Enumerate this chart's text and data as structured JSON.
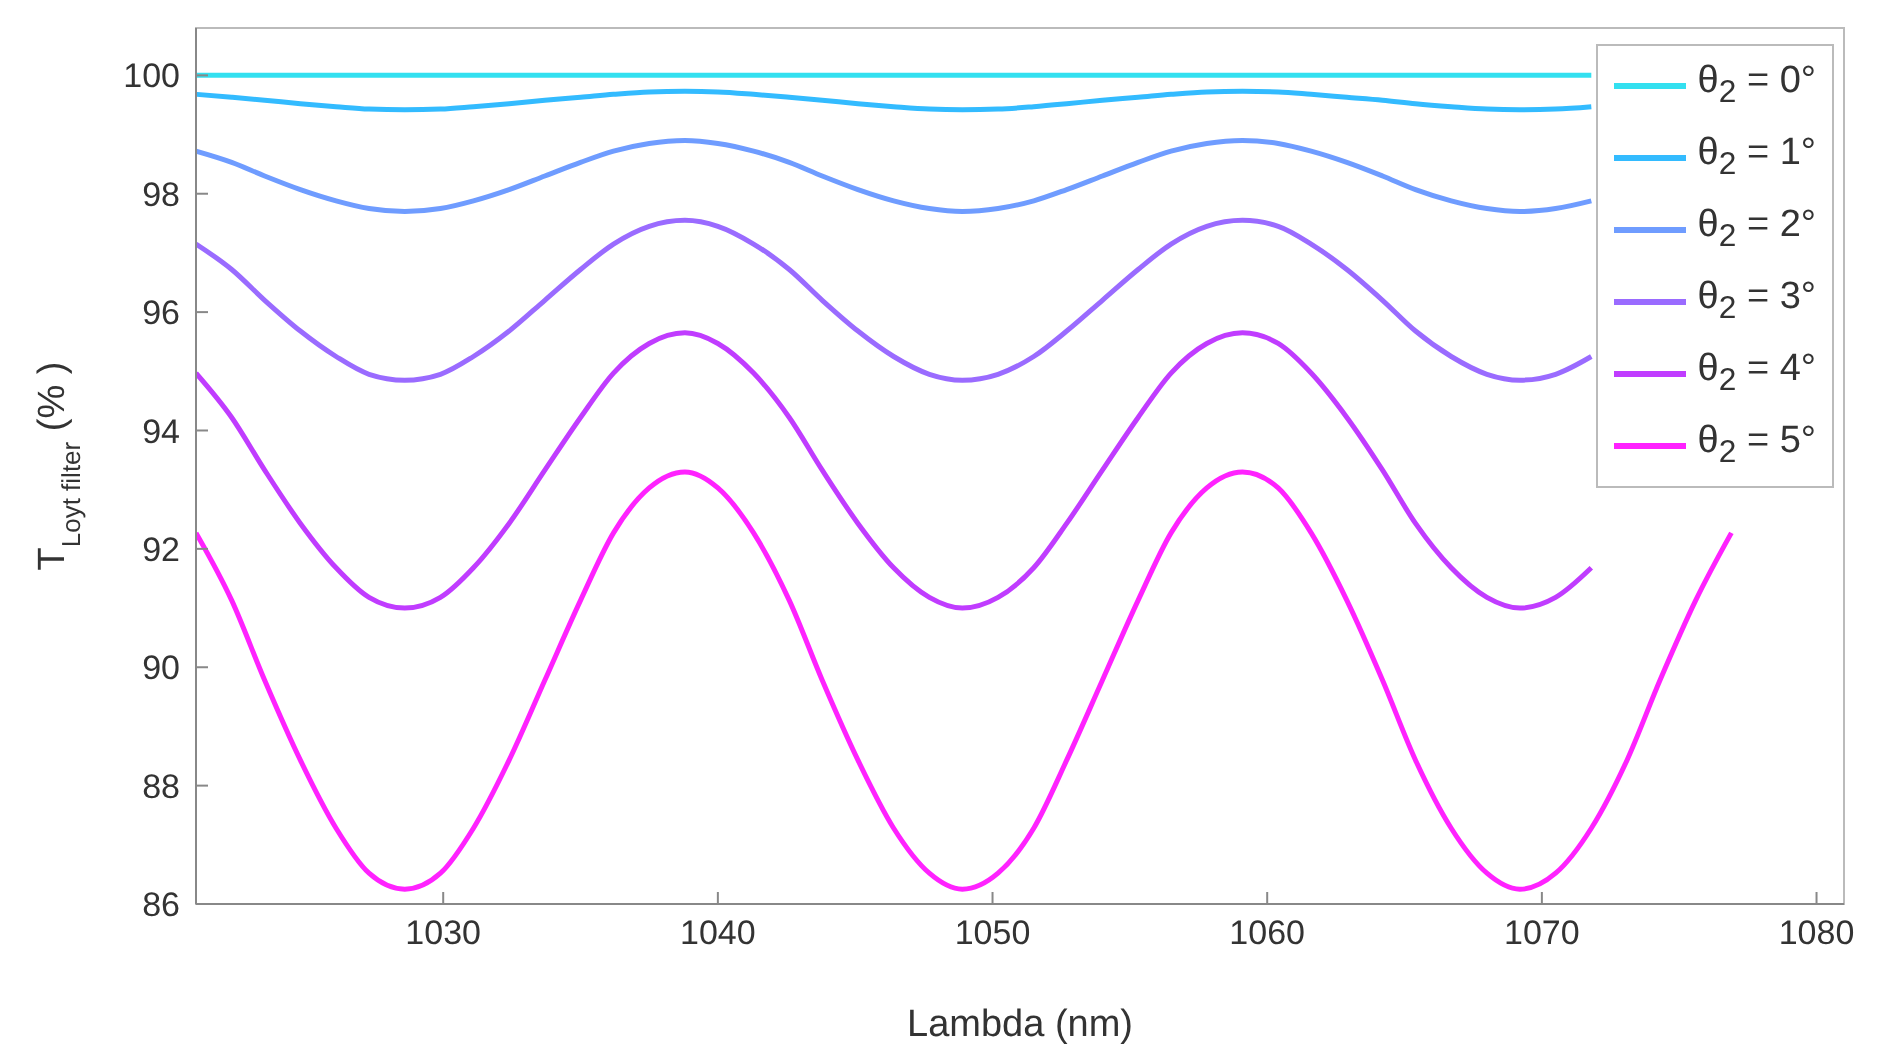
{
  "chart_data": {
    "type": "line",
    "xlabel": "Lambda (nm)",
    "ylabel": "T$_{Loyt filter}$ (% )",
    "x": [
      1021.0,
      1022.3,
      1023.5,
      1024.8,
      1026.1,
      1027.3,
      1028.6,
      1029.9,
      1031.1,
      1032.4,
      1033.7,
      1035.0,
      1036.2,
      1037.5,
      1038.8,
      1040.0,
      1041.3,
      1042.6,
      1043.8,
      1045.1,
      1046.4,
      1047.7,
      1048.9,
      1050.2,
      1051.5,
      1052.7,
      1054.0,
      1055.3,
      1056.5,
      1057.8,
      1059.1,
      1060.4,
      1061.6,
      1062.9,
      1064.2,
      1065.4,
      1066.7,
      1068.0,
      1069.2,
      1070.5,
      1071.8,
      1073.1,
      1074.3,
      1075.6,
      1076.9
    ],
    "series": [
      {
        "name": "θ$_{2}$ = 0°",
        "color": "#33e0f0",
        "x": [
          1021.0,
          1071.8
        ],
        "values": [
          100,
          100
        ]
      },
      {
        "name": "θ$_{2}$ = 1°",
        "color": "#33bbff",
        "values": [
          99.68,
          99.63,
          99.58,
          99.52,
          99.47,
          99.43,
          99.42,
          99.43,
          99.47,
          99.52,
          99.58,
          99.63,
          99.68,
          99.72,
          99.73,
          99.72,
          99.68,
          99.63,
          99.58,
          99.52,
          99.47,
          99.43,
          99.42,
          99.43,
          99.47,
          99.52,
          99.58,
          99.63,
          99.68,
          99.72,
          99.73,
          99.72,
          99.68,
          99.63,
          99.58,
          99.52,
          99.47,
          99.43,
          99.42,
          99.43,
          99.47,
          null,
          null,
          null,
          null
        ]
      },
      {
        "name": "θ$_{2}$ = 2°",
        "color": "#6f9cff",
        "values": [
          98.72,
          98.53,
          98.3,
          98.07,
          97.88,
          97.75,
          97.7,
          97.75,
          97.88,
          98.07,
          98.3,
          98.53,
          98.72,
          98.85,
          98.9,
          98.85,
          98.72,
          98.53,
          98.3,
          98.07,
          97.88,
          97.75,
          97.7,
          97.75,
          97.88,
          98.07,
          98.3,
          98.53,
          98.72,
          98.85,
          98.9,
          98.85,
          98.72,
          98.53,
          98.3,
          98.07,
          97.88,
          97.75,
          97.7,
          97.75,
          97.88,
          null,
          null,
          null,
          null
        ]
      },
      {
        "name": "θ$_{2}$ = 3°",
        "color": "#9a6bff",
        "values": [
          97.15,
          96.72,
          96.2,
          95.68,
          95.25,
          94.95,
          94.85,
          94.95,
          95.25,
          95.68,
          96.2,
          96.72,
          97.15,
          97.45,
          97.55,
          97.45,
          97.15,
          96.72,
          96.2,
          95.68,
          95.25,
          94.95,
          94.85,
          94.95,
          95.25,
          95.68,
          96.2,
          96.72,
          97.15,
          97.45,
          97.55,
          97.45,
          97.15,
          96.72,
          96.2,
          95.68,
          95.25,
          94.95,
          94.85,
          94.95,
          95.25,
          null,
          null,
          null,
          null
        ]
      },
      {
        "name": "θ$_{2}$ = 4°",
        "color": "#c03cff",
        "values": [
          94.97,
          94.22,
          93.33,
          92.43,
          91.68,
          91.18,
          91.0,
          91.18,
          91.68,
          92.43,
          93.33,
          94.22,
          94.97,
          95.47,
          95.65,
          95.47,
          94.97,
          94.22,
          93.33,
          92.43,
          91.68,
          91.18,
          91.0,
          91.18,
          91.68,
          92.43,
          93.33,
          94.22,
          94.97,
          95.47,
          95.65,
          95.47,
          94.97,
          94.22,
          93.33,
          92.43,
          91.68,
          91.18,
          91.0,
          91.18,
          91.68,
          null,
          null,
          null,
          null
        ]
      },
      {
        "name": "θ$_{2}$ = 5°",
        "color": "#ff22ff",
        "values": [
          92.27,
          91.13,
          89.78,
          88.43,
          87.28,
          86.52,
          86.25,
          86.52,
          87.28,
          88.43,
          89.78,
          91.13,
          92.27,
          93.03,
          93.3,
          93.03,
          92.27,
          91.13,
          89.78,
          88.43,
          87.28,
          86.52,
          86.25,
          86.52,
          87.28,
          88.43,
          89.78,
          91.13,
          92.27,
          93.03,
          93.3,
          93.03,
          92.27,
          91.13,
          89.78,
          88.43,
          87.28,
          86.52,
          86.25,
          86.52,
          87.28,
          88.43,
          89.78,
          91.13,
          92.27
        ]
      }
    ],
    "xlim": [
      1021,
      1081
    ],
    "xticks": [
      1030,
      1040,
      1050,
      1060,
      1070,
      1080
    ],
    "ylim": [
      86,
      100.8
    ],
    "yticks": [
      86,
      88,
      90,
      92,
      94,
      96,
      98,
      100
    ],
    "grid": false,
    "legend": "top right",
    "line_style": "solid"
  }
}
